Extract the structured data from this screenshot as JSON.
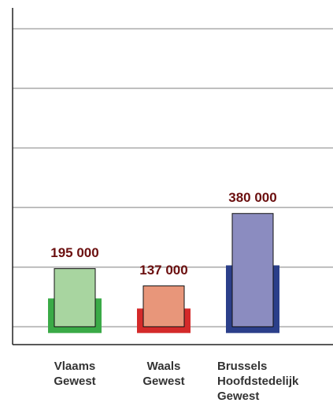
{
  "chart_data": {
    "type": "bar",
    "categories": [
      "Vlaams Gewest",
      "Waals Gewest",
      "Brussels Hoofdstedelijk Gewest"
    ],
    "series": [
      {
        "colors": [
          "#a8d5a0",
          "#e8967a",
          "#8b8cc0"
        ],
        "values": [
          195000,
          137000,
          380000
        ],
        "value_labels": [
          "195 000",
          "137 000",
          "380 000"
        ]
      },
      {
        "colors": [
          "#3aaa47",
          "#d42a2a",
          "#2b3f8a"
        ],
        "values": [
          95000,
          61000,
          206000
        ]
      }
    ],
    "ylim": [
      -60000,
      1070000
    ],
    "yticks": [
      0,
      200000,
      400000,
      600000,
      800000,
      1000000
    ],
    "grid": true
  }
}
